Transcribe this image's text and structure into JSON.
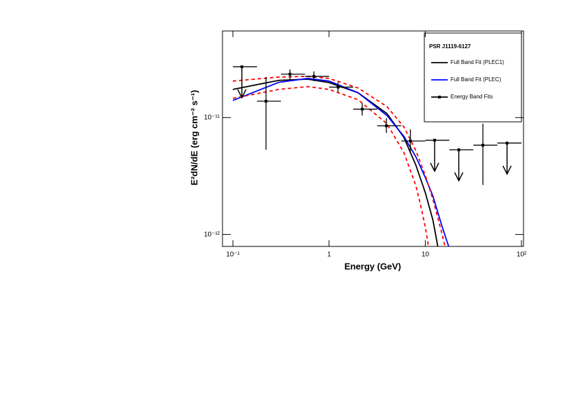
{
  "chart_data": {
    "type": "sed",
    "legend_title": "PSR J1119-6127",
    "xlabel": "Energy (GeV)",
    "ylabel": "E²dN/dE (erg cm⁻² s⁻¹)",
    "log_x": true,
    "log_y": true,
    "xlim": [
      0.078,
      105
    ],
    "ylim": [
      7.9e-13,
      5.5e-11
    ],
    "xticks": [
      {
        "value": 0.1,
        "label": "10⁻¹"
      },
      1,
      10,
      {
        "value": 100,
        "label": "10²"
      }
    ],
    "yticks": [
      {
        "value": 1e-12,
        "label": "10⁻¹²"
      },
      {
        "value": 1e-11,
        "label": "10⁻¹¹"
      }
    ],
    "legend": "upper right",
    "curves": [
      {
        "name": "Full Band Fit (PLEC1)",
        "color": "#000000",
        "x": [
          0.1,
          0.3,
          0.6,
          1,
          2,
          4,
          6,
          8,
          10,
          12,
          13.5
        ],
        "values": [
          1.74e-11,
          2.08e-11,
          2.13e-11,
          1.99e-11,
          1.63e-11,
          1.08e-11,
          6.75e-12,
          3.9e-12,
          2.28e-12,
          1.33e-12,
          7.9e-13
        ]
      },
      {
        "name": "Full Band Fit (PLEC)",
        "color": "#0000ff",
        "x": [
          0.1,
          0.3,
          0.6,
          1,
          2,
          4,
          6,
          8,
          10,
          12,
          15,
          17.5
        ],
        "values": [
          1.4e-11,
          2e-11,
          2.16e-11,
          2.05e-11,
          1.63e-11,
          1.04e-11,
          6.9e-12,
          4.6e-12,
          3.07e-12,
          2.13e-12,
          1.16e-12,
          7.9e-13
        ]
      },
      {
        "color": "#ff0000",
        "dashed": true,
        "x": [
          0.1,
          0.3,
          0.6,
          1,
          2,
          4,
          6,
          8,
          10,
          12,
          15,
          16
        ],
        "values": [
          2.05e-11,
          2.22e-11,
          2.25e-11,
          2.16e-11,
          1.79e-11,
          1.24e-11,
          8.3e-12,
          5.2e-12,
          3.2e-12,
          2e-12,
          1e-12,
          7.9e-13
        ]
      },
      {
        "color": "#ff0000",
        "dashed": true,
        "x": [
          0.1,
          0.3,
          0.6,
          1,
          2,
          4,
          6,
          8,
          9,
          10,
          10.8
        ],
        "values": [
          1.46e-11,
          1.74e-11,
          1.84e-11,
          1.74e-11,
          1.42e-11,
          8.85e-12,
          5e-12,
          2.6e-12,
          1.74e-12,
          1.16e-12,
          7.9e-13
        ]
      }
    ],
    "points": {
      "name": "Energy Band Fits",
      "color": "#000000",
      "bin_edges": [
        0.1,
        0.178,
        0.316,
        0.562,
        1,
        1.78,
        3.16,
        5.62,
        10,
        17.8,
        31.6,
        56.2,
        100
      ],
      "x": [
        0.124,
        0.221,
        0.392,
        0.695,
        1.24,
        2.21,
        3.94,
        7.0,
        12.5,
        22.3,
        39.7,
        70.8
      ],
      "values": [
        2.72e-11,
        1.38e-11,
        2.35e-11,
        2.25e-11,
        1.82e-11,
        1.18e-11,
        8.5e-12,
        6.3e-12,
        6.4e-12,
        5.3e-12,
        5.8e-12,
        6.05e-12
      ],
      "ylow": [
        null,
        5.3e-12,
        2.11e-11,
        2.05e-11,
        1.65e-11,
        1.04e-11,
        7.4e-12,
        5e-12,
        null,
        null,
        2.65e-12,
        null
      ],
      "yhigh": [
        null,
        2.22e-11,
        2.58e-11,
        2.48e-11,
        2e-11,
        1.33e-11,
        9.87e-12,
        7.9e-12,
        null,
        null,
        8.85e-12,
        null
      ],
      "upper_limit": [
        true,
        false,
        false,
        false,
        false,
        false,
        false,
        false,
        true,
        true,
        false,
        true
      ]
    }
  }
}
